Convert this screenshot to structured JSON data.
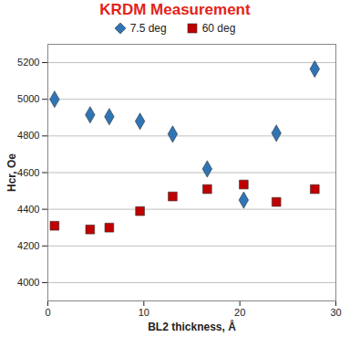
{
  "chart_data": {
    "type": "scatter",
    "title": "KRDM Measurement",
    "x_label": "BL2 thickness, Å",
    "y_label": "Hcr, Oe",
    "series": [
      {
        "name": "7.5 deg",
        "color": "#2e75b6",
        "marker": "diamond",
        "x": [
          0.7,
          4.4,
          6.4,
          9.6,
          13.0,
          16.6,
          20.4,
          23.8,
          27.8
        ],
        "values": [
          5000,
          4915,
          4905,
          4880,
          4810,
          4620,
          4450,
          4815,
          5165
        ]
      },
      {
        "name": "60 deg",
        "color": "#c00000",
        "marker": "square",
        "x": [
          0.7,
          4.4,
          6.4,
          9.6,
          13.0,
          16.6,
          20.4,
          23.8,
          27.8
        ],
        "values": [
          4310,
          4290,
          4300,
          4390,
          4470,
          4510,
          4535,
          4440,
          4510
        ]
      }
    ],
    "xlim": [
      0,
      30
    ],
    "xticks": [
      0,
      10,
      20,
      30
    ],
    "ylim": [
      3900,
      5300
    ],
    "yticks": [
      4000,
      4200,
      4400,
      4600,
      4800,
      5000,
      5200
    ],
    "grid": true,
    "legend": "top"
  }
}
